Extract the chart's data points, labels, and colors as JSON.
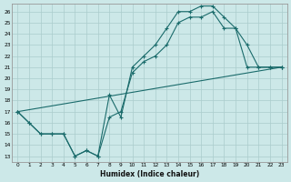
{
  "xlabel": "Humidex (Indice chaleur)",
  "xlim": [
    -0.5,
    23.5
  ],
  "ylim": [
    12.5,
    26.7
  ],
  "yticks": [
    13,
    14,
    15,
    16,
    17,
    18,
    19,
    20,
    21,
    22,
    23,
    24,
    25,
    26
  ],
  "xticks": [
    0,
    1,
    2,
    3,
    4,
    5,
    6,
    7,
    8,
    9,
    10,
    11,
    12,
    13,
    14,
    15,
    16,
    17,
    18,
    19,
    20,
    21,
    22,
    23
  ],
  "bg_color": "#cce8e8",
  "line_color": "#1a6b6b",
  "grid_color": "#aacccc",
  "line1_x": [
    0,
    1,
    2,
    3,
    4,
    5,
    6,
    7,
    8,
    9,
    10,
    11,
    12,
    13,
    14,
    15,
    16,
    17,
    18,
    19,
    20,
    21,
    22,
    23
  ],
  "line1_y": [
    17.0,
    16.0,
    15.0,
    15.0,
    15.0,
    13.0,
    13.5,
    13.0,
    18.5,
    16.5,
    21.0,
    22.0,
    23.0,
    24.5,
    26.0,
    26.0,
    26.5,
    26.5,
    25.5,
    24.5,
    23.0,
    21.0,
    21.0,
    21.0
  ],
  "line2_x": [
    0,
    1,
    2,
    3,
    4,
    5,
    6,
    7,
    8,
    9,
    10,
    11,
    12,
    13,
    14,
    15,
    16,
    17,
    18,
    19,
    20,
    21,
    22,
    23
  ],
  "line2_y": [
    17.0,
    16.0,
    15.0,
    15.0,
    15.0,
    13.0,
    13.5,
    13.0,
    16.5,
    17.0,
    20.5,
    21.5,
    22.0,
    23.0,
    25.0,
    25.5,
    25.5,
    26.0,
    24.5,
    24.5,
    21.0,
    21.0,
    21.0,
    21.0
  ],
  "line3_x": [
    0,
    23
  ],
  "line3_y": [
    17.0,
    21.0
  ]
}
